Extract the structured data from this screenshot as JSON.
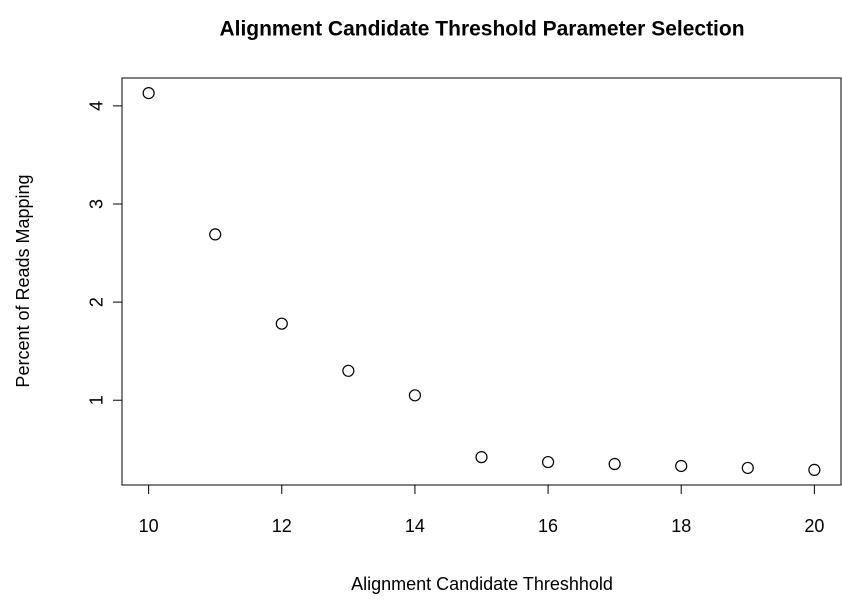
{
  "chart_data": {
    "type": "scatter",
    "title": "Alignment Candidate Threshold Parameter Selection",
    "x_label": "Alignment Candidate Threshhold",
    "y_label": "Percent of Reads Mapping",
    "x": [
      10,
      11,
      12,
      13,
      14,
      15,
      16,
      17,
      18,
      19,
      20
    ],
    "values": [
      4.13,
      2.69,
      1.78,
      1.3,
      1.05,
      0.42,
      0.37,
      0.35,
      0.33,
      0.31,
      0.29
    ],
    "color": "#000000",
    "xlim": [
      9.6,
      20.4
    ],
    "xticks": [
      10,
      12,
      14,
      16,
      18,
      20
    ],
    "ylim": [
      0.136,
      4.284
    ],
    "yticks": [
      1,
      2,
      3,
      4
    ]
  }
}
